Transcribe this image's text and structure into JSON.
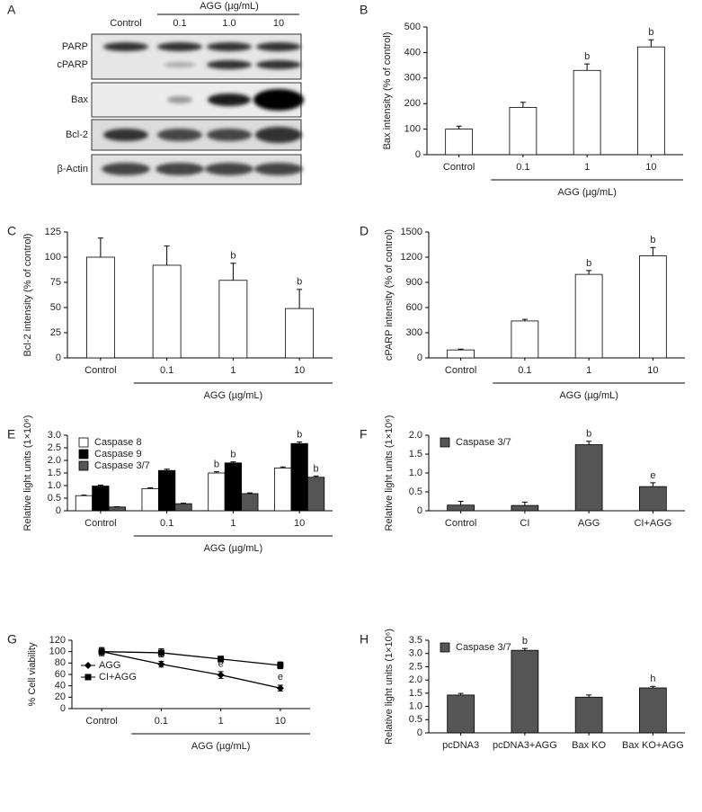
{
  "blot": {
    "panel": "A",
    "group_label": "AGG (µg/mL)",
    "lanes": [
      "Control",
      "0.1",
      "1.0",
      "10"
    ],
    "rows": [
      "PARP",
      "cPARP",
      "Bax",
      "Bcl-2",
      "β-Actin"
    ]
  },
  "chart_data": [
    {
      "type": "bar",
      "panel": "B",
      "ylabel": "Bax intensity (% of control)",
      "xlabel": "AGG (µg/mL)",
      "categories": [
        "Control",
        "0.1",
        "1",
        "10"
      ],
      "values": [
        100,
        185,
        330,
        422
      ],
      "errors": [
        12,
        20,
        25,
        28
      ],
      "annotations": [
        null,
        null,
        "b",
        "b"
      ],
      "color": "#ffffff",
      "ylim": [
        0,
        500
      ],
      "yticks": [
        0,
        100,
        200,
        300,
        400,
        500
      ]
    },
    {
      "type": "bar",
      "panel": "C",
      "ylabel": "Bcl-2 intensity (% of control)",
      "xlabel": "AGG (µg/mL)",
      "categories": [
        "Control",
        "0.1",
        "1",
        "10"
      ],
      "values": [
        100,
        92,
        77,
        49
      ],
      "errors": [
        19,
        19,
        17,
        19
      ],
      "annotations": [
        null,
        null,
        "b",
        "b"
      ],
      "color": "#ffffff",
      "ylim": [
        0,
        125
      ],
      "yticks": [
        0,
        25,
        50,
        75,
        100,
        125
      ]
    },
    {
      "type": "bar",
      "panel": "D",
      "ylabel": "cPARP intensity (% of control)",
      "xlabel": "AGG (µg/mL)",
      "categories": [
        "Control",
        "0.1",
        "1",
        "10"
      ],
      "values": [
        95,
        440,
        995,
        1215
      ],
      "errors": [
        10,
        20,
        45,
        100
      ],
      "annotations": [
        null,
        null,
        "b",
        "b"
      ],
      "color": "#ffffff",
      "ylim": [
        0,
        1500
      ],
      "yticks": [
        0,
        300,
        600,
        900,
        1200,
        1500
      ]
    },
    {
      "type": "bar",
      "panel": "E",
      "ylabel": "Relative light units (1×10⁶)",
      "xlabel": "AGG (µg/mL)",
      "categories": [
        "Control",
        "0.1",
        "1",
        "10"
      ],
      "legend": "upper left",
      "series": [
        {
          "name": "Caspase 8",
          "color": "#ffffff",
          "values": [
            0.6,
            0.88,
            1.5,
            1.7
          ],
          "errors": [
            0.02,
            0.03,
            0.05,
            0.04
          ],
          "annotations": [
            null,
            null,
            "b",
            null
          ]
        },
        {
          "name": "Caspase 9",
          "color": "#000000",
          "values": [
            0.98,
            1.6,
            1.9,
            2.67
          ],
          "errors": [
            0.04,
            0.05,
            0.04,
            0.06
          ],
          "annotations": [
            null,
            null,
            "b",
            "b"
          ]
        },
        {
          "name": "Caspase 3/7",
          "color": "#555555",
          "values": [
            0.15,
            0.28,
            0.68,
            1.33
          ],
          "errors": [
            0.01,
            0.02,
            0.03,
            0.05
          ],
          "annotations": [
            null,
            null,
            null,
            "b"
          ]
        }
      ],
      "ylim": [
        0,
        3
      ],
      "yticks": [
        0,
        0.5,
        {
          "value": 1,
          "label": "1.0"
        },
        1.5,
        {
          "value": 2,
          "label": "2.0"
        },
        2.5,
        {
          "value": 3,
          "label": "3.0"
        }
      ]
    },
    {
      "type": "bar",
      "panel": "F",
      "ylabel": "Relative light units (1×10⁶)",
      "categories": [
        "Control",
        "CI",
        "AGG",
        "CI+AGG"
      ],
      "legend": "upper left",
      "series": [
        {
          "name": "Caspase 3/7",
          "color": "#555555",
          "values": [
            0.15,
            0.14,
            1.75,
            0.64
          ],
          "errors": [
            0.1,
            0.09,
            0.09,
            0.1
          ],
          "annotations": [
            null,
            null,
            "b",
            "e"
          ]
        }
      ],
      "ylim": [
        0,
        2
      ],
      "yticks": [
        0,
        0.5,
        {
          "value": 1,
          "label": "1.0"
        },
        1.5,
        {
          "value": 2,
          "label": "2.0"
        }
      ]
    },
    {
      "type": "line",
      "panel": "G",
      "ylabel": "% Cell viability",
      "xlabel": "AGG (µg/mL)",
      "categories": [
        "Control",
        "0.1",
        "1",
        "10"
      ],
      "legend": "lower left",
      "series": [
        {
          "name": "AGG",
          "color": "#000000",
          "marker": "D",
          "values": [
            100,
            78,
            59,
            36
          ],
          "errors": [
            7,
            5,
            6,
            5
          ],
          "annotations": [
            null,
            null,
            "e",
            "e"
          ]
        },
        {
          "name": "CI+AGG",
          "color": "#000000",
          "marker": "s",
          "values": [
            100,
            98,
            87,
            76
          ],
          "errors": [
            7,
            7,
            5,
            6
          ],
          "annotations": [
            null,
            null,
            null,
            null
          ]
        }
      ],
      "ylim": [
        0,
        120
      ],
      "yticks": [
        0,
        20,
        40,
        60,
        80,
        100,
        120
      ]
    },
    {
      "type": "bar",
      "panel": "H",
      "ylabel": "Relative light units (1×10⁶)",
      "categories": [
        "pcDNA3",
        "pcDNA3+AGG",
        "Bax KO",
        "Bax KO+AGG"
      ],
      "legend": "upper left",
      "series": [
        {
          "name": "Caspase 3/7",
          "color": "#555555",
          "values": [
            1.43,
            3.12,
            1.35,
            1.7
          ],
          "errors": [
            0.06,
            0.07,
            0.08,
            0.06
          ],
          "annotations": [
            null,
            "b",
            null,
            "h"
          ]
        }
      ],
      "ylim": [
        0,
        3.5
      ],
      "yticks": [
        0,
        0.5,
        {
          "value": 1,
          "label": "1.0"
        },
        1.5,
        {
          "value": 2,
          "label": "2.0"
        },
        2.5,
        {
          "value": 3,
          "label": "3.0"
        },
        3.5
      ]
    }
  ]
}
